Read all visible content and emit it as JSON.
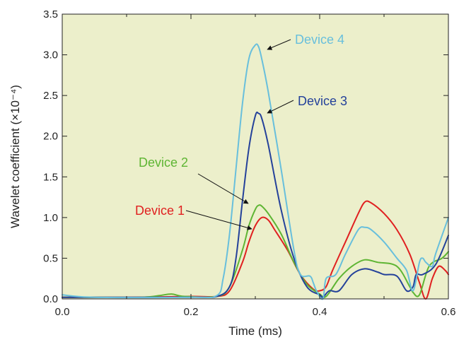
{
  "chart_data": {
    "type": "line",
    "title": "",
    "xlabel": "Time (ms)",
    "ylabel": "Wavelet coefficient (×10⁻⁴)",
    "xlim": [
      0,
      0.6
    ],
    "ylim": [
      0,
      3.5
    ],
    "xticks": [
      "0.0",
      "0.2",
      "0.4",
      "0.6"
    ],
    "yticks": [
      "0.0",
      "0.5",
      "1.0",
      "1.5",
      "2.0",
      "2.5",
      "3.0",
      "3.5"
    ],
    "grid": false,
    "background": "#ecefcb",
    "legend": "inline labels with arrows",
    "series": [
      {
        "name": "Device 1",
        "color": "#e02020",
        "points": [
          [
            0,
            0.02
          ],
          [
            0.1,
            0.02
          ],
          [
            0.2,
            0.03
          ],
          [
            0.24,
            0.03
          ],
          [
            0.26,
            0.1
          ],
          [
            0.28,
            0.45
          ],
          [
            0.29,
            0.7
          ],
          [
            0.3,
            0.9
          ],
          [
            0.31,
            1.0
          ],
          [
            0.32,
            0.97
          ],
          [
            0.33,
            0.85
          ],
          [
            0.35,
            0.6
          ],
          [
            0.37,
            0.3
          ],
          [
            0.39,
            0.12
          ],
          [
            0.4,
            0.1
          ],
          [
            0.41,
            0.15
          ],
          [
            0.42,
            0.35
          ],
          [
            0.44,
            0.7
          ],
          [
            0.46,
            1.05
          ],
          [
            0.47,
            1.19
          ],
          [
            0.48,
            1.18
          ],
          [
            0.5,
            1.05
          ],
          [
            0.52,
            0.85
          ],
          [
            0.54,
            0.55
          ],
          [
            0.555,
            0.2
          ],
          [
            0.565,
            0.0
          ],
          [
            0.575,
            0.25
          ],
          [
            0.585,
            0.4
          ],
          [
            0.595,
            0.35
          ],
          [
            0.6,
            0.3
          ]
        ]
      },
      {
        "name": "Device 2",
        "color": "#5eb533",
        "points": [
          [
            0,
            0.02
          ],
          [
            0.12,
            0.02
          ],
          [
            0.15,
            0.04
          ],
          [
            0.17,
            0.06
          ],
          [
            0.19,
            0.03
          ],
          [
            0.24,
            0.03
          ],
          [
            0.26,
            0.15
          ],
          [
            0.28,
            0.6
          ],
          [
            0.29,
            0.9
          ],
          [
            0.3,
            1.1
          ],
          [
            0.305,
            1.15
          ],
          [
            0.31,
            1.14
          ],
          [
            0.32,
            1.05
          ],
          [
            0.34,
            0.8
          ],
          [
            0.36,
            0.45
          ],
          [
            0.38,
            0.18
          ],
          [
            0.4,
            0.06
          ],
          [
            0.41,
            0.03
          ],
          [
            0.43,
            0.25
          ],
          [
            0.45,
            0.4
          ],
          [
            0.47,
            0.48
          ],
          [
            0.49,
            0.45
          ],
          [
            0.52,
            0.4
          ],
          [
            0.54,
            0.15
          ],
          [
            0.545,
            0.08
          ],
          [
            0.555,
            0.05
          ],
          [
            0.57,
            0.4
          ],
          [
            0.59,
            0.5
          ],
          [
            0.6,
            0.58
          ]
        ]
      },
      {
        "name": "Device 3",
        "color": "#24419a",
        "points": [
          [
            0,
            0.02
          ],
          [
            0.2,
            0.02
          ],
          [
            0.24,
            0.03
          ],
          [
            0.26,
            0.15
          ],
          [
            0.27,
            0.5
          ],
          [
            0.28,
            1.2
          ],
          [
            0.29,
            1.85
          ],
          [
            0.3,
            2.25
          ],
          [
            0.305,
            2.28
          ],
          [
            0.31,
            2.22
          ],
          [
            0.32,
            1.9
          ],
          [
            0.34,
            1.1
          ],
          [
            0.36,
            0.5
          ],
          [
            0.38,
            0.15
          ],
          [
            0.4,
            0.05
          ],
          [
            0.405,
            0.02
          ],
          [
            0.415,
            0.1
          ],
          [
            0.43,
            0.1
          ],
          [
            0.45,
            0.3
          ],
          [
            0.47,
            0.37
          ],
          [
            0.49,
            0.33
          ],
          [
            0.5,
            0.3
          ],
          [
            0.52,
            0.28
          ],
          [
            0.535,
            0.1
          ],
          [
            0.545,
            0.15
          ],
          [
            0.55,
            0.3
          ],
          [
            0.56,
            0.3
          ],
          [
            0.58,
            0.42
          ],
          [
            0.6,
            0.78
          ]
        ]
      },
      {
        "name": "Device 4",
        "color": "#68bfdc",
        "points": [
          [
            0,
            0.05
          ],
          [
            0.05,
            0.02
          ],
          [
            0.2,
            0.02
          ],
          [
            0.24,
            0.04
          ],
          [
            0.25,
            0.25
          ],
          [
            0.26,
            0.8
          ],
          [
            0.27,
            1.6
          ],
          [
            0.28,
            2.4
          ],
          [
            0.29,
            2.95
          ],
          [
            0.3,
            3.12
          ],
          [
            0.305,
            3.1
          ],
          [
            0.31,
            2.95
          ],
          [
            0.32,
            2.55
          ],
          [
            0.34,
            1.6
          ],
          [
            0.36,
            0.6
          ],
          [
            0.37,
            0.3
          ],
          [
            0.385,
            0.28
          ],
          [
            0.39,
            0.2
          ],
          [
            0.395,
            0.1
          ],
          [
            0.405,
            0.0
          ],
          [
            0.41,
            0.25
          ],
          [
            0.425,
            0.3
          ],
          [
            0.44,
            0.55
          ],
          [
            0.46,
            0.85
          ],
          [
            0.47,
            0.88
          ],
          [
            0.48,
            0.85
          ],
          [
            0.5,
            0.7
          ],
          [
            0.52,
            0.5
          ],
          [
            0.535,
            0.35
          ],
          [
            0.545,
            0.1
          ],
          [
            0.555,
            0.45
          ],
          [
            0.56,
            0.5
          ],
          [
            0.565,
            0.45
          ],
          [
            0.575,
            0.4
          ],
          [
            0.58,
            0.55
          ],
          [
            0.6,
            1.0
          ]
        ]
      }
    ]
  }
}
